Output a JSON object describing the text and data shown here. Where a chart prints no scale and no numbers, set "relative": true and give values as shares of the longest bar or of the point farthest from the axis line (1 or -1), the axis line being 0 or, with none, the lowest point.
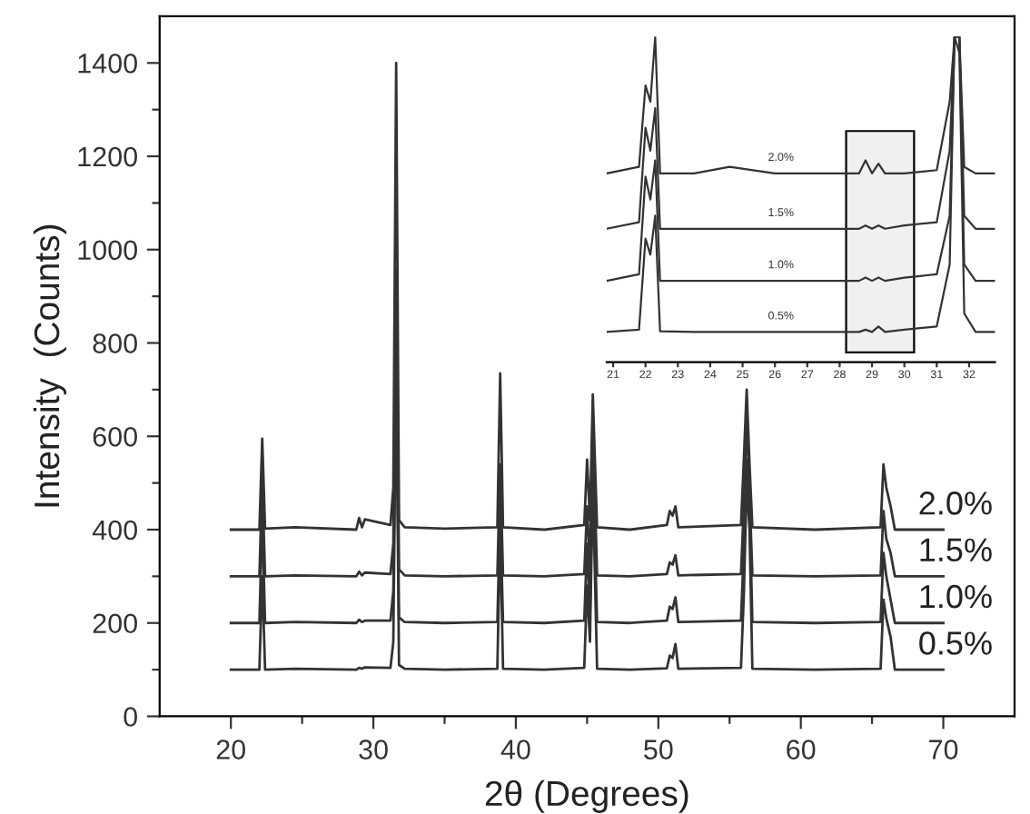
{
  "chart_data": [
    {
      "type": "line",
      "xlabel": "2θ (Degrees)",
      "ylabel": "Intensity  (Counts)",
      "xlim": [
        15,
        75
      ],
      "ylim": [
        0,
        1500
      ],
      "xticks": [
        20,
        30,
        40,
        50,
        60,
        70
      ],
      "yticks": [
        0,
        200,
        400,
        600,
        800,
        1000,
        1200,
        1400
      ],
      "grid": false,
      "legend": false,
      "x": [
        20,
        22.0,
        22.2,
        22.4,
        24.5,
        28.8,
        29.0,
        29.2,
        29.4,
        31.2,
        31.4,
        31.6,
        31.8,
        32.2,
        35,
        38.7,
        38.9,
        39.1,
        42,
        44.8,
        45.0,
        45.2,
        45.4,
        45.7,
        48,
        50.6,
        50.8,
        51.0,
        51.2,
        51.4,
        55.8,
        56.0,
        56.2,
        56.4,
        56.6,
        61,
        65.6,
        65.8,
        66.0,
        66.3,
        66.6,
        70
      ],
      "series": [
        {
          "name": "0.5%",
          "color": "#333333",
          "values": [
            100,
            100,
            300,
            100,
            102,
            100,
            104,
            102,
            105,
            104,
            160,
            760,
            110,
            102,
            100,
            102,
            400,
            102,
            100,
            104,
            280,
            160,
            500,
            102,
            100,
            103,
            130,
            125,
            155,
            102,
            104,
            260,
            500,
            400,
            102,
            100,
            102,
            250,
            210,
            170,
            100,
            100
          ]
        },
        {
          "name": "1.0%",
          "color": "#333333",
          "values": [
            200,
            200,
            430,
            200,
            202,
            200,
            207,
            202,
            205,
            205,
            270,
            820,
            212,
            202,
            200,
            202,
            440,
            202,
            200,
            205,
            370,
            215,
            560,
            202,
            200,
            205,
            235,
            230,
            255,
            202,
            205,
            360,
            550,
            460,
            202,
            200,
            202,
            350,
            300,
            250,
            200,
            200
          ]
        },
        {
          "name": "1.5%",
          "color": "#333333",
          "values": [
            300,
            300,
            510,
            300,
            302,
            300,
            310,
            302,
            308,
            305,
            370,
            960,
            315,
            302,
            300,
            302,
            540,
            302,
            300,
            305,
            450,
            315,
            640,
            302,
            300,
            305,
            330,
            325,
            345,
            302,
            305,
            450,
            640,
            480,
            302,
            300,
            302,
            440,
            380,
            350,
            300,
            300
          ]
        },
        {
          "name": "2.0%",
          "color": "#333333",
          "values": [
            400,
            400,
            595,
            402,
            405,
            400,
            425,
            405,
            422,
            410,
            490,
            1400,
            420,
            405,
            402,
            405,
            735,
            405,
            400,
            410,
            550,
            420,
            690,
            405,
            400,
            410,
            440,
            430,
            450,
            405,
            410,
            550,
            700,
            540,
            405,
            400,
            405,
            540,
            490,
            450,
            400,
            400
          ]
        }
      ]
    },
    {
      "type": "line",
      "relative": true,
      "xlim": [
        20.8,
        32.8
      ],
      "xticks": [
        21,
        22,
        23,
        24,
        25,
        26,
        27,
        28,
        29,
        30,
        31,
        32
      ],
      "tick_labels": "x",
      "grid": false,
      "legend": false,
      "bands": [
        {
          "axis": "x",
          "from": 28.2,
          "to": 30.3,
          "color": "#000000"
        }
      ],
      "x": [
        20.8,
        21.8,
        22.0,
        22.15,
        22.3,
        22.45,
        23.5,
        24.6,
        26,
        27.5,
        28.6,
        28.8,
        29.0,
        29.2,
        29.4,
        30.0,
        31.0,
        31.4,
        31.55,
        31.7,
        31.85,
        32.2,
        32.8
      ],
      "series": [
        {
          "name": "0.5%",
          "color": "#333333",
          "values": [
            0.093,
            0.1,
            0.38,
            0.33,
            0.45,
            0.095,
            0.093,
            0.093,
            0.093,
            0.093,
            0.093,
            0.1,
            0.093,
            0.11,
            0.093,
            0.1,
            0.11,
            0.3,
            1.0,
            0.95,
            0.15,
            0.093,
            0.093
          ]
        },
        {
          "name": "1.0%",
          "color": "#333333",
          "values": [
            0.25,
            0.27,
            0.57,
            0.5,
            0.62,
            0.25,
            0.25,
            0.25,
            0.25,
            0.25,
            0.25,
            0.26,
            0.25,
            0.26,
            0.25,
            0.26,
            0.27,
            0.45,
            1.0,
            1.0,
            0.3,
            0.25,
            0.25
          ]
        },
        {
          "name": "1.5%",
          "color": "#333333",
          "values": [
            0.41,
            0.43,
            0.72,
            0.65,
            0.78,
            0.41,
            0.41,
            0.41,
            0.41,
            0.41,
            0.41,
            0.42,
            0.41,
            0.42,
            0.41,
            0.42,
            0.43,
            0.65,
            1.0,
            1.0,
            0.45,
            0.41,
            0.41
          ]
        },
        {
          "name": "2.0%",
          "color": "#333333",
          "values": [
            0.58,
            0.6,
            0.85,
            0.8,
            1.0,
            0.58,
            0.58,
            0.6,
            0.58,
            0.58,
            0.58,
            0.62,
            0.58,
            0.61,
            0.58,
            0.58,
            0.59,
            0.8,
            1.0,
            1.0,
            0.6,
            0.58,
            0.58
          ]
        }
      ]
    }
  ]
}
